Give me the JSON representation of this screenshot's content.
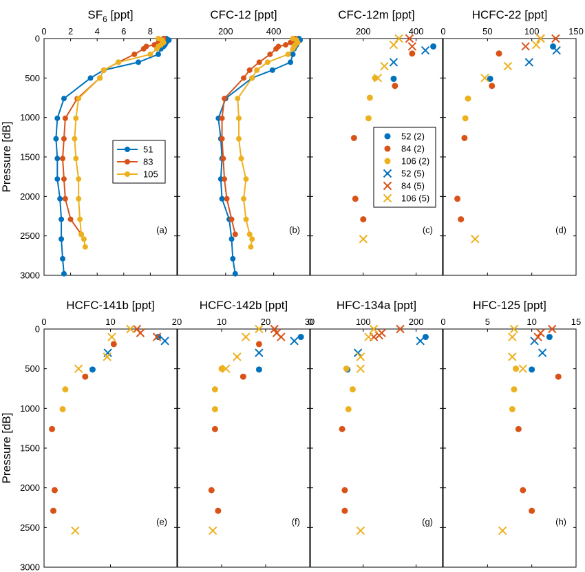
{
  "ylabel": "Pressure [dB]",
  "ylim": [
    0,
    3000
  ],
  "yticks": [
    0,
    500,
    1000,
    1500,
    2000,
    2500,
    3000
  ],
  "colors": {
    "s1": "#0072BD",
    "s2": "#D95319",
    "s3": "#EDB120"
  },
  "chart_data": [
    {
      "panel_label": "(a)",
      "title": "SF",
      "title_sub": "6",
      "title_unit": " [ppt]",
      "type": "line",
      "xlim": [
        0,
        10
      ],
      "xticks": [
        0,
        2,
        4,
        6,
        8
      ],
      "legend": {
        "position": "middle",
        "entries": [
          "51",
          "83",
          "105"
        ]
      },
      "series": [
        {
          "name": "51",
          "color": "s1",
          "mode": "line",
          "x": [
            9.2,
            9.4,
            9.2,
            9.1,
            9.0,
            8.8,
            8.6,
            7.1,
            4.5,
            3.5,
            1.5,
            1.0,
            0.9,
            1.0,
            1.0,
            1.2,
            1.3,
            1.3,
            1.4,
            1.5
          ],
          "y": [
            0,
            20,
            50,
            80,
            100,
            130,
            200,
            300,
            400,
            500,
            760,
            1010,
            1270,
            1520,
            1780,
            2030,
            2290,
            2540,
            2790,
            2980
          ]
        },
        {
          "name": "83",
          "color": "s2",
          "mode": "line",
          "x": [
            9.0,
            8.8,
            8.6,
            8.3,
            7.7,
            7.5,
            6.8,
            5.6,
            4.5,
            4.2,
            2.5,
            1.6,
            1.5,
            1.4,
            1.5,
            1.6,
            2.0,
            2.8
          ],
          "y": [
            0,
            20,
            50,
            80,
            100,
            130,
            200,
            300,
            400,
            500,
            760,
            1010,
            1270,
            1520,
            1780,
            2030,
            2290,
            2480
          ]
        },
        {
          "name": "105",
          "color": "s3",
          "mode": "line",
          "x": [
            8.6,
            8.9,
            9.0,
            8.8,
            8.6,
            8.5,
            8.0,
            5.6,
            4.5,
            4.2,
            2.6,
            2.4,
            2.3,
            2.4,
            2.6,
            2.6,
            2.7,
            2.8,
            3.0,
            3.1
          ],
          "y": [
            0,
            20,
            50,
            80,
            100,
            130,
            200,
            300,
            400,
            500,
            760,
            1010,
            1270,
            1520,
            1780,
            2030,
            2290,
            2480,
            2540,
            2640
          ]
        }
      ]
    },
    {
      "panel_label": "(b)",
      "title": "CFC-12 [ppt]",
      "type": "line",
      "xlim": [
        0,
        550
      ],
      "xticks": [
        200,
        400
      ],
      "series": [
        {
          "name": "51",
          "color": "s1",
          "mode": "line",
          "x": [
            505,
            510,
            500,
            495,
            490,
            485,
            480,
            470,
            395,
            310,
            200,
            170,
            180,
            185,
            180,
            185,
            215,
            225,
            230,
            240
          ],
          "y": [
            0,
            20,
            50,
            80,
            100,
            130,
            200,
            300,
            400,
            500,
            760,
            1010,
            1270,
            1520,
            1780,
            2030,
            2290,
            2540,
            2790,
            2980
          ]
        },
        {
          "name": "83",
          "color": "s2",
          "mode": "line",
          "x": [
            490,
            480,
            470,
            450,
            420,
            410,
            385,
            340,
            300,
            275,
            195,
            185,
            185,
            190,
            195,
            205,
            225,
            240
          ],
          "y": [
            0,
            20,
            50,
            80,
            100,
            130,
            200,
            300,
            400,
            500,
            760,
            1010,
            1270,
            1520,
            1780,
            2030,
            2290,
            2480
          ]
        },
        {
          "name": "105",
          "color": "s3",
          "mode": "line",
          "x": [
            480,
            495,
            500,
            490,
            485,
            480,
            460,
            375,
            330,
            310,
            250,
            255,
            255,
            265,
            285,
            275,
            285,
            300,
            310,
            305
          ],
          "y": [
            0,
            20,
            50,
            80,
            100,
            130,
            200,
            300,
            400,
            500,
            760,
            1010,
            1270,
            1520,
            1780,
            2030,
            2290,
            2480,
            2540,
            2640
          ]
        }
      ]
    },
    {
      "panel_label": "(c)",
      "title": "CFC-12m [ppt]",
      "type": "scatter",
      "xlim": [
        0,
        500
      ],
      "xticks": [
        200,
        400
      ],
      "legend": {
        "position": "middle",
        "entries": [
          "52 (2)",
          "84 (2)",
          "106 (2)",
          "52 (5)",
          "84 (5)",
          "106 (5)"
        ]
      },
      "series": [
        {
          "name": "52 (2)",
          "color": "s1",
          "mode": "dot",
          "x": [
            465,
            315
          ],
          "y": [
            100,
            510
          ]
        },
        {
          "name": "84 (2)",
          "color": "s2",
          "mode": "dot",
          "x": [
            385,
            320,
            165,
            170,
            200
          ],
          "y": [
            190,
            600,
            1260,
            2030,
            2290
          ]
        },
        {
          "name": "106 (2)",
          "color": "s3",
          "mode": "dot",
          "x": [
            245,
            225,
            220
          ],
          "y": [
            500,
            750,
            1010
          ]
        },
        {
          "name": "52 (5)",
          "color": "s1",
          "mode": "x",
          "x": [
            435,
            315
          ],
          "y": [
            150,
            300
          ]
        },
        {
          "name": "84 (5)",
          "color": "s2",
          "mode": "x",
          "x": [
            375,
            385
          ],
          "y": [
            0,
            100
          ]
        },
        {
          "name": "106 (5)",
          "color": "s3",
          "mode": "x",
          "x": [
            335,
            315,
            280,
            255,
            200
          ],
          "y": [
            0,
            80,
            350,
            500,
            2540
          ]
        }
      ]
    },
    {
      "panel_label": "(d)",
      "title": "HCFC-22 [ppt]",
      "type": "scatter",
      "xlim": [
        0,
        150
      ],
      "xticks": [
        0,
        50,
        100,
        150
      ],
      "series": [
        {
          "name": "52 (2)",
          "color": "s1",
          "mode": "dot",
          "x": [
            124,
            53
          ],
          "y": [
            100,
            510
          ]
        },
        {
          "name": "84 (2)",
          "color": "s2",
          "mode": "dot",
          "x": [
            63,
            55,
            24,
            16,
            20
          ],
          "y": [
            190,
            600,
            1260,
            2030,
            2290
          ]
        },
        {
          "name": "106 (2)",
          "color": "s3",
          "mode": "dot",
          "x": [
            28,
            25
          ],
          "y": [
            760,
            1010
          ]
        },
        {
          "name": "52 (5)",
          "color": "s1",
          "mode": "x",
          "x": [
            128,
            97
          ],
          "y": [
            150,
            300
          ]
        },
        {
          "name": "84 (5)",
          "color": "s2",
          "mode": "x",
          "x": [
            127,
            110,
            93
          ],
          "y": [
            0,
            0,
            100
          ]
        },
        {
          "name": "106 (5)",
          "color": "s3",
          "mode": "x",
          "x": [
            110,
            105,
            73,
            47,
            36
          ],
          "y": [
            0,
            80,
            350,
            500,
            2540
          ]
        }
      ]
    },
    {
      "panel_label": "(e)",
      "title": "HCFC-141b [ppt]",
      "type": "scatter",
      "xlim": [
        0,
        20
      ],
      "xticks": [
        0,
        10,
        20
      ],
      "series": [
        {
          "name": "52 (2)",
          "color": "s1",
          "mode": "dot",
          "x": [
            17.2,
            7.3
          ],
          "y": [
            100,
            510
          ]
        },
        {
          "name": "84 (2)",
          "color": "s2",
          "mode": "dot",
          "x": [
            10.5,
            6.2,
            1.2,
            1.6,
            1.4
          ],
          "y": [
            190,
            600,
            1260,
            2030,
            2290
          ]
        },
        {
          "name": "106 (2)",
          "color": "s3",
          "mode": "dot",
          "x": [
            3.2,
            2.8
          ],
          "y": [
            760,
            1010
          ]
        },
        {
          "name": "52 (5)",
          "color": "s1",
          "mode": "x",
          "x": [
            18.2,
            9.6
          ],
          "y": [
            150,
            300
          ]
        },
        {
          "name": "84 (5)",
          "color": "s2",
          "mode": "x",
          "x": [
            14.0,
            14.5,
            17.0
          ],
          "y": [
            0,
            50,
            100
          ]
        },
        {
          "name": "106 (5)",
          "color": "s3",
          "mode": "x",
          "x": [
            13.0,
            10.2,
            9.5,
            5.2,
            4.7
          ],
          "y": [
            0,
            100,
            350,
            500,
            2540
          ]
        }
      ]
    },
    {
      "panel_label": "(f)",
      "title": "HCFC-142b [ppt]",
      "type": "scatter",
      "xlim": [
        0,
        30
      ],
      "xticks": [
        10,
        20,
        30
      ],
      "series": [
        {
          "name": "52 (2)",
          "color": "s1",
          "mode": "dot",
          "x": [
            28.0,
            18.5
          ],
          "y": [
            100,
            510
          ]
        },
        {
          "name": "84 (2)",
          "color": "s2",
          "mode": "dot",
          "x": [
            18.5,
            14.9,
            8.5,
            7.7,
            9.2
          ],
          "y": [
            190,
            600,
            1260,
            2030,
            2290
          ]
        },
        {
          "name": "106 (2)",
          "color": "s3",
          "mode": "dot",
          "x": [
            10.0,
            8.5,
            8.5
          ],
          "y": [
            500,
            760,
            1010
          ]
        },
        {
          "name": "52 (5)",
          "color": "s1",
          "mode": "x",
          "x": [
            26.5,
            18.5
          ],
          "y": [
            150,
            300
          ]
        },
        {
          "name": "84 (5)",
          "color": "s2",
          "mode": "x",
          "x": [
            22.0,
            22.5,
            23.5
          ],
          "y": [
            0,
            50,
            100
          ]
        },
        {
          "name": "106 (5)",
          "color": "s3",
          "mode": "x",
          "x": [
            18.5,
            15.5,
            13.5,
            11.0,
            8.0
          ],
          "y": [
            0,
            100,
            350,
            500,
            2540
          ]
        }
      ]
    },
    {
      "panel_label": "(g)",
      "title": "HFC-134a [ppt]",
      "type": "scatter",
      "xlim": [
        0,
        250
      ],
      "xticks": [
        0,
        100,
        200
      ],
      "series": [
        {
          "name": "52 (2)",
          "color": "s1",
          "mode": "dot",
          "x": [
            218,
            70
          ],
          "y": [
            100,
            510
          ]
        },
        {
          "name": "84 (2)",
          "color": "s2",
          "mode": "dot",
          "x": [
            60,
            65,
            65
          ],
          "y": [
            1260,
            2030,
            2290
          ]
        },
        {
          "name": "106 (2)",
          "color": "s3",
          "mode": "dot",
          "x": [
            68,
            80,
            72
          ],
          "y": [
            500,
            760,
            1010
          ]
        },
        {
          "name": "52 (5)",
          "color": "s1",
          "mode": "x",
          "x": [
            208,
            90
          ],
          "y": [
            150,
            300
          ]
        },
        {
          "name": "84 (5)",
          "color": "s2",
          "mode": "x",
          "x": [
            170,
            135,
            130,
            120
          ],
          "y": [
            0,
            50,
            80,
            100
          ]
        },
        {
          "name": "106 (5)",
          "color": "s3",
          "mode": "x",
          "x": [
            120,
            110,
            95,
            95,
            95
          ],
          "y": [
            0,
            100,
            350,
            500,
            2540
          ]
        }
      ]
    },
    {
      "panel_label": "(h)",
      "title": "HFC-125 [ppt]",
      "type": "scatter",
      "xlim": [
        0,
        15
      ],
      "xticks": [
        0,
        5,
        10,
        15
      ],
      "series": [
        {
          "name": "52 (2)",
          "color": "s1",
          "mode": "dot",
          "x": [
            12.0,
            10.0
          ],
          "y": [
            100,
            510
          ]
        },
        {
          "name": "84 (2)",
          "color": "s2",
          "mode": "dot",
          "x": [
            13.0,
            8.5,
            9.0,
            10.0
          ],
          "y": [
            600,
            1260,
            2030,
            2290
          ]
        },
        {
          "name": "106 (2)",
          "color": "s3",
          "mode": "dot",
          "x": [
            8.2,
            8.0,
            7.8
          ],
          "y": [
            500,
            760,
            1010
          ]
        },
        {
          "name": "52 (5)",
          "color": "s1",
          "mode": "x",
          "x": [
            10.3,
            11.2
          ],
          "y": [
            150,
            300
          ]
        },
        {
          "name": "84 (5)",
          "color": "s2",
          "mode": "x",
          "x": [
            12.3,
            11.0,
            10.7
          ],
          "y": [
            0,
            50,
            100
          ]
        },
        {
          "name": "106 (5)",
          "color": "s3",
          "mode": "x",
          "x": [
            8.0,
            7.8,
            7.8,
            9.0,
            6.7
          ],
          "y": [
            0,
            100,
            350,
            500,
            2540
          ]
        }
      ]
    }
  ]
}
